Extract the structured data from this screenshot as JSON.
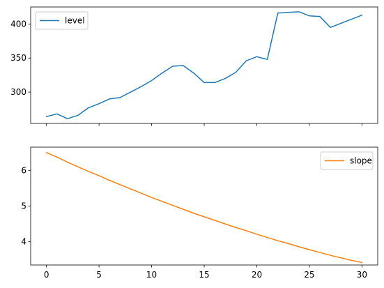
{
  "chart_data": [
    {
      "type": "line",
      "x": [
        0,
        1,
        2,
        3,
        4,
        5,
        6,
        7,
        8,
        9,
        10,
        11,
        12,
        13,
        14,
        15,
        16,
        17,
        18,
        19,
        20,
        21,
        22,
        23,
        24,
        25,
        26,
        27,
        28,
        29,
        30
      ],
      "series": [
        {
          "name": "level",
          "color": "#1f77b4",
          "values": [
            264,
            268,
            261,
            266,
            277,
            283,
            290,
            292,
            300,
            308,
            317,
            328,
            338,
            339,
            328,
            314,
            314,
            320,
            329,
            346,
            352,
            348,
            416,
            417,
            418,
            412,
            411,
            395,
            401,
            407,
            413
          ]
        }
      ],
      "xlim": [
        -1.5,
        31.5
      ],
      "ylim": [
        254,
        425
      ],
      "xticks": [
        0,
        5,
        10,
        15,
        20,
        25,
        30
      ],
      "yticks": [
        300,
        350,
        400
      ],
      "show_xtick_labels": false,
      "legend": "upper-left",
      "title": "",
      "xlabel": "",
      "ylabel": ""
    },
    {
      "type": "line",
      "x": [
        0,
        1,
        2,
        3,
        4,
        5,
        6,
        7,
        8,
        9,
        10,
        11,
        12,
        13,
        14,
        15,
        16,
        17,
        18,
        19,
        20,
        21,
        22,
        23,
        24,
        25,
        26,
        27,
        28,
        29,
        30
      ],
      "series": [
        {
          "name": "slope",
          "color": "#ff7f0e",
          "values": [
            6.5,
            6.37,
            6.23,
            6.1,
            5.97,
            5.85,
            5.72,
            5.6,
            5.48,
            5.36,
            5.24,
            5.13,
            5.02,
            4.91,
            4.8,
            4.7,
            4.6,
            4.5,
            4.4,
            4.31,
            4.21,
            4.12,
            4.03,
            3.95,
            3.86,
            3.78,
            3.7,
            3.62,
            3.55,
            3.48,
            3.42
          ]
        }
      ],
      "xlim": [
        -1.5,
        31.5
      ],
      "ylim": [
        3.35,
        6.65
      ],
      "xticks": [
        0,
        5,
        10,
        15,
        20,
        25,
        30
      ],
      "yticks": [
        4,
        5,
        6
      ],
      "show_xtick_labels": true,
      "legend": "upper-right",
      "title": "",
      "xlabel": "",
      "ylabel": ""
    }
  ]
}
